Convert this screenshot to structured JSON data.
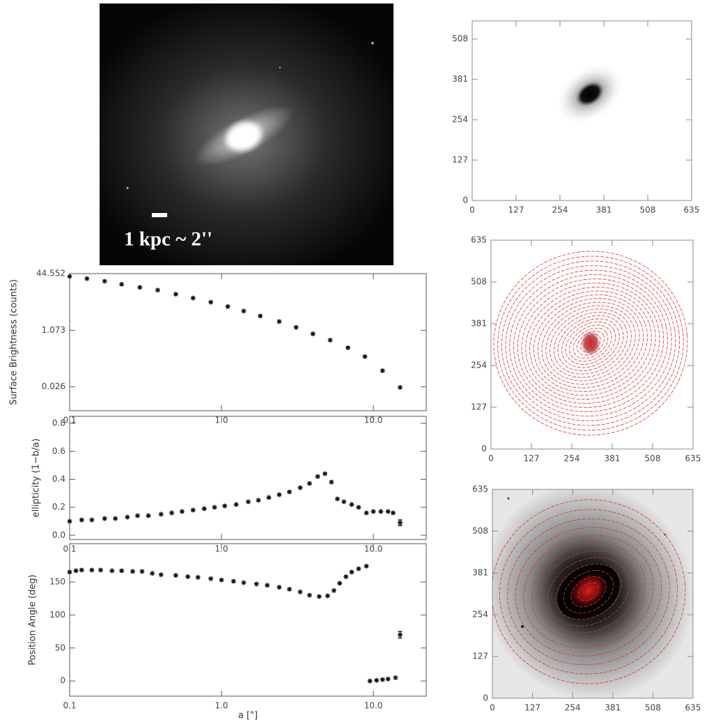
{
  "galaxy_image": {
    "scale_label": "1 kpc ~ 2''"
  },
  "chart_data": [
    {
      "type": "scatter",
      "ylabel": "Surface Brightness (counts)",
      "xscale": "log",
      "yscale": "log",
      "xlim": [
        0.1,
        22.3
      ],
      "ylim": [
        0.0054,
        44.552
      ],
      "xticks": [
        0.1,
        {
          "value": 1,
          "label": "1.0"
        },
        {
          "value": 10,
          "label": "10.0"
        }
      ],
      "yticks": [
        0.026,
        1.073,
        44.552
      ],
      "color": "#111111",
      "x": [
        0.1,
        0.13,
        0.17,
        0.22,
        0.29,
        0.38,
        0.5,
        0.65,
        0.85,
        1.1,
        1.4,
        1.8,
        2.4,
        3.1,
        4.0,
        5.2,
        6.8,
        8.8,
        11.5,
        15
      ],
      "values": [
        37,
        32,
        27,
        22,
        18,
        15,
        11.5,
        8.9,
        6.8,
        5.1,
        3.8,
        2.75,
        1.9,
        1.3,
        0.85,
        0.56,
        0.34,
        0.19,
        0.075,
        0.025
      ]
    },
    {
      "type": "scatter",
      "ylabel": "ellipticity (1−b/a)",
      "xscale": "log",
      "xlim": [
        0.1,
        22.3
      ],
      "ylim": [
        -0.03,
        0.85
      ],
      "xticks": [
        0.1,
        {
          "value": 1,
          "label": "1.0"
        },
        {
          "value": 10,
          "label": "10.0"
        }
      ],
      "yticks": [
        {
          "value": 0,
          "label": "0.0"
        },
        0.2,
        0.4,
        0.6,
        0.8
      ],
      "color": "#111111",
      "x": [
        0.1,
        0.12,
        0.14,
        0.17,
        0.2,
        0.24,
        0.28,
        0.33,
        0.4,
        0.47,
        0.55,
        0.65,
        0.77,
        0.9,
        1.05,
        1.25,
        1.5,
        1.75,
        2.05,
        2.4,
        2.8,
        3.3,
        3.8,
        4.3,
        4.8,
        5.3,
        5.8,
        6.4,
        7.2,
        8.0,
        9.0,
        10.0,
        11.2,
        12.5,
        13.5
      ],
      "values": [
        0.1,
        0.11,
        0.11,
        0.12,
        0.12,
        0.13,
        0.14,
        0.14,
        0.15,
        0.16,
        0.17,
        0.18,
        0.19,
        0.2,
        0.21,
        0.22,
        0.24,
        0.25,
        0.27,
        0.29,
        0.31,
        0.34,
        0.37,
        0.42,
        0.44,
        0.38,
        0.26,
        0.24,
        0.22,
        0.2,
        0.16,
        0.17,
        0.17,
        0.17,
        0.16
      ],
      "errorbar": {
        "x": 15,
        "value": 0.09,
        "error": 0.02
      }
    },
    {
      "type": "scatter",
      "ylabel": "Position Angle (deg)",
      "xlabel": "a [\"]",
      "xscale": "log",
      "xlim": [
        0.1,
        22.3
      ],
      "ylim": [
        -23,
        208
      ],
      "xticks": [
        0.1,
        {
          "value": 1,
          "label": "1.0"
        },
        {
          "value": 10,
          "label": "10.0"
        }
      ],
      "yticks": [
        0,
        50,
        100,
        150
      ],
      "color": "#111111",
      "x": [
        0.1,
        0.11,
        0.12,
        0.14,
        0.16,
        0.19,
        0.22,
        0.26,
        0.3,
        0.35,
        0.4,
        0.5,
        0.6,
        0.7,
        0.85,
        1.0,
        1.2,
        1.4,
        1.7,
        2.0,
        2.4,
        2.8,
        3.3,
        3.8,
        4.4,
        5.0,
        5.5,
        6.0,
        6.6,
        7.2,
        8.0,
        9.0,
        9.5,
        10.5,
        11.5,
        12.5,
        14.0
      ],
      "values": [
        165,
        167,
        168,
        168,
        168,
        167,
        167,
        166,
        166,
        163,
        161,
        160,
        158,
        157,
        155,
        153,
        151,
        149,
        147,
        145,
        142,
        139,
        135,
        130,
        128,
        129,
        137,
        148,
        158,
        165,
        170,
        174,
        0,
        1,
        2,
        3,
        5
      ],
      "errorbar": {
        "x": 15,
        "value": 70,
        "error": 5
      }
    },
    {
      "type": "image",
      "xlim": [
        0,
        635
      ],
      "ylim": [
        0,
        565
      ],
      "xticks": [
        0,
        127,
        254,
        381,
        508,
        635
      ],
      "yticks": [
        0,
        127,
        254,
        381,
        508
      ]
    },
    {
      "type": "image",
      "xlim": [
        0,
        635
      ],
      "ylim": [
        0,
        635
      ],
      "xticks": [
        0,
        127,
        254,
        381,
        508,
        635
      ],
      "yticks": [
        0,
        127,
        254,
        381,
        508,
        635
      ]
    },
    {
      "type": "image",
      "xlim": [
        0,
        635
      ],
      "ylim": [
        0,
        635
      ],
      "xticks": [
        0,
        127,
        254,
        381,
        508,
        635
      ],
      "yticks": [
        0,
        127,
        254,
        381,
        508,
        635
      ]
    }
  ]
}
